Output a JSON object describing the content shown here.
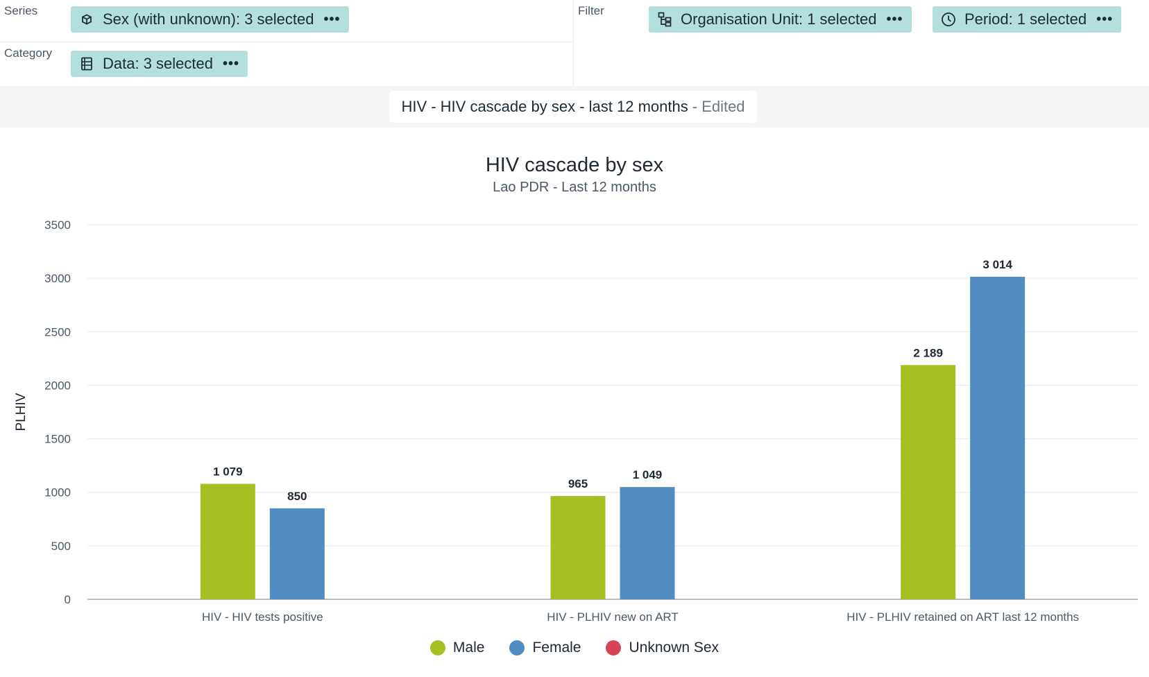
{
  "layout": {
    "series_label": "Series",
    "category_label": "Category",
    "filter_label": "Filter",
    "series_chip": "Sex (with unknown): 3 selected",
    "category_chip": "Data: 3 selected",
    "filter_chips": [
      "Organisation Unit: 1 selected",
      "Period: 1 selected"
    ],
    "chip_more": "•••"
  },
  "visualization": {
    "name": "HIV - HIV cascade by sex - last 12 months",
    "edited_suffix": "- Edited"
  },
  "colors": {
    "chip_bg": "#b3e0dd",
    "male": "#a8bf24",
    "female": "#518cc3",
    "unknown": "#d74554"
  },
  "chart_data": {
    "type": "bar",
    "title": "HIV cascade by sex",
    "subtitle": "Lao PDR - Last 12 months",
    "ylabel": "PLHIV",
    "ylim": [
      0,
      3500
    ],
    "yticks": [
      "0",
      "500",
      "1000",
      "1500",
      "2000",
      "2500",
      "3000",
      "3500"
    ],
    "categories": [
      "HIV - HIV tests positive",
      "HIV - PLHIV new on ART",
      "HIV - PLHIV retained on ART last 12 months"
    ],
    "series": [
      {
        "name": "Male",
        "color": "#a8bf24",
        "values": [
          1079,
          965,
          2189
        ],
        "labels": [
          "1 079",
          "965",
          "2 189"
        ]
      },
      {
        "name": "Female",
        "color": "#518cc3",
        "values": [
          850,
          1049,
          3014
        ],
        "labels": [
          "850",
          "1 049",
          "3 014"
        ]
      },
      {
        "name": "Unknown Sex",
        "color": "#d74554",
        "values": [
          null,
          null,
          null
        ],
        "labels": [
          "",
          "",
          ""
        ]
      }
    ],
    "grid": true,
    "legend_position": "bottom-center"
  }
}
